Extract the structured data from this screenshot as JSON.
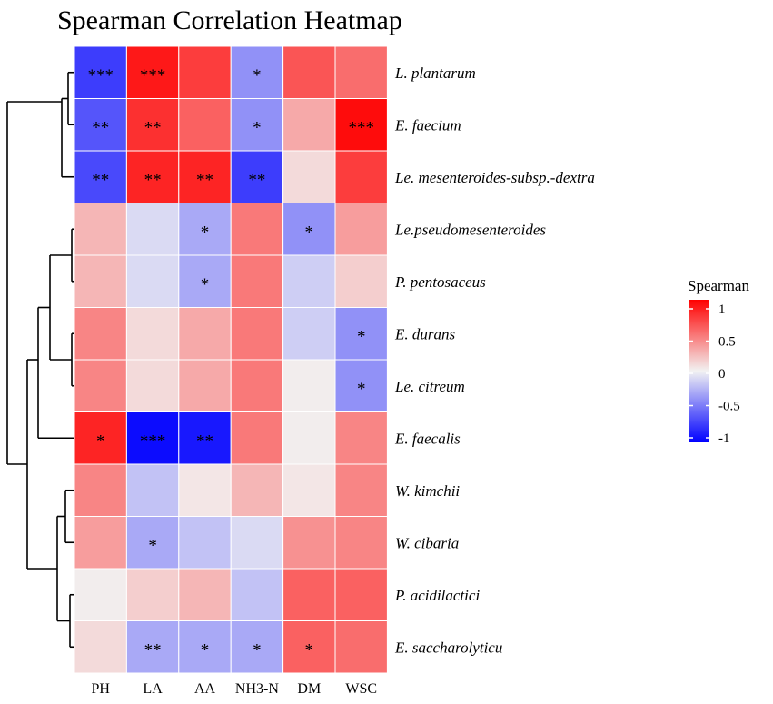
{
  "chart_data": {
    "type": "heatmap",
    "title": "Spearman Correlation Heatmap",
    "columns": [
      "PH",
      "LA",
      "AA",
      "NH3-N",
      "DM",
      "WSC"
    ],
    "rows": [
      "L. plantarum",
      "E. faecium",
      "Le. mesenteroides-subsp.-dextra",
      "Le.pseudomesenteroides",
      "P. pentosaceus",
      "E. durans",
      "Le. citreum",
      "E. faecalis",
      "W. kimchii",
      "W. cibaria",
      "P. acidilactici",
      "E. saccharolyticu"
    ],
    "values": [
      [
        -0.75,
        0.9,
        0.75,
        -0.4,
        0.65,
        0.55
      ],
      [
        -0.65,
        0.8,
        0.6,
        -0.4,
        0.3,
        0.95
      ],
      [
        -0.7,
        0.85,
        0.85,
        -0.75,
        0.1,
        0.75
      ],
      [
        0.25,
        -0.1,
        -0.3,
        0.5,
        -0.4,
        0.35
      ],
      [
        0.25,
        -0.1,
        -0.3,
        0.5,
        -0.15,
        0.15
      ],
      [
        0.45,
        0.1,
        0.3,
        0.5,
        -0.15,
        -0.4
      ],
      [
        0.45,
        0.1,
        0.3,
        0.5,
        0.02,
        -0.4
      ],
      [
        0.85,
        -0.95,
        -0.9,
        0.5,
        0.02,
        0.45
      ],
      [
        0.45,
        -0.2,
        0.05,
        0.25,
        0.05,
        0.45
      ],
      [
        0.35,
        -0.3,
        -0.2,
        -0.1,
        0.4,
        0.45
      ],
      [
        0.02,
        0.15,
        0.25,
        -0.2,
        0.6,
        0.6
      ],
      [
        0.1,
        -0.3,
        -0.3,
        -0.3,
        0.6,
        0.55
      ]
    ],
    "significance": [
      [
        "***",
        "***",
        "",
        "*",
        "",
        ""
      ],
      [
        "**",
        "**",
        "",
        "*",
        "",
        "***"
      ],
      [
        "**",
        "**",
        "**",
        "**",
        "",
        ""
      ],
      [
        "",
        "",
        "*",
        "",
        "*",
        ""
      ],
      [
        "",
        "",
        "*",
        "",
        "",
        ""
      ],
      [
        "",
        "",
        "",
        "",
        "",
        "*"
      ],
      [
        "",
        "",
        "",
        "",
        "",
        "*"
      ],
      [
        "*",
        "***",
        "**",
        "",
        "",
        ""
      ],
      [
        "",
        "",
        "",
        "",
        "",
        ""
      ],
      [
        "",
        "*",
        "",
        "",
        "",
        ""
      ],
      [
        "",
        "",
        "",
        "",
        "",
        ""
      ],
      [
        "",
        "**",
        "*",
        "*",
        "*",
        ""
      ]
    ],
    "color_scale": {
      "min": -1,
      "mid": 0,
      "max": 1,
      "low_color": "#0000ff",
      "mid_color": "#f2f2f2",
      "high_color": "#ff0000"
    },
    "legend": {
      "title": "Spearman",
      "ticks": [
        1,
        0.5,
        0,
        -0.5,
        -1
      ],
      "tick_labels": [
        "1",
        "0.5",
        "0",
        "-0.5",
        "-1"
      ],
      "position": "right"
    }
  }
}
